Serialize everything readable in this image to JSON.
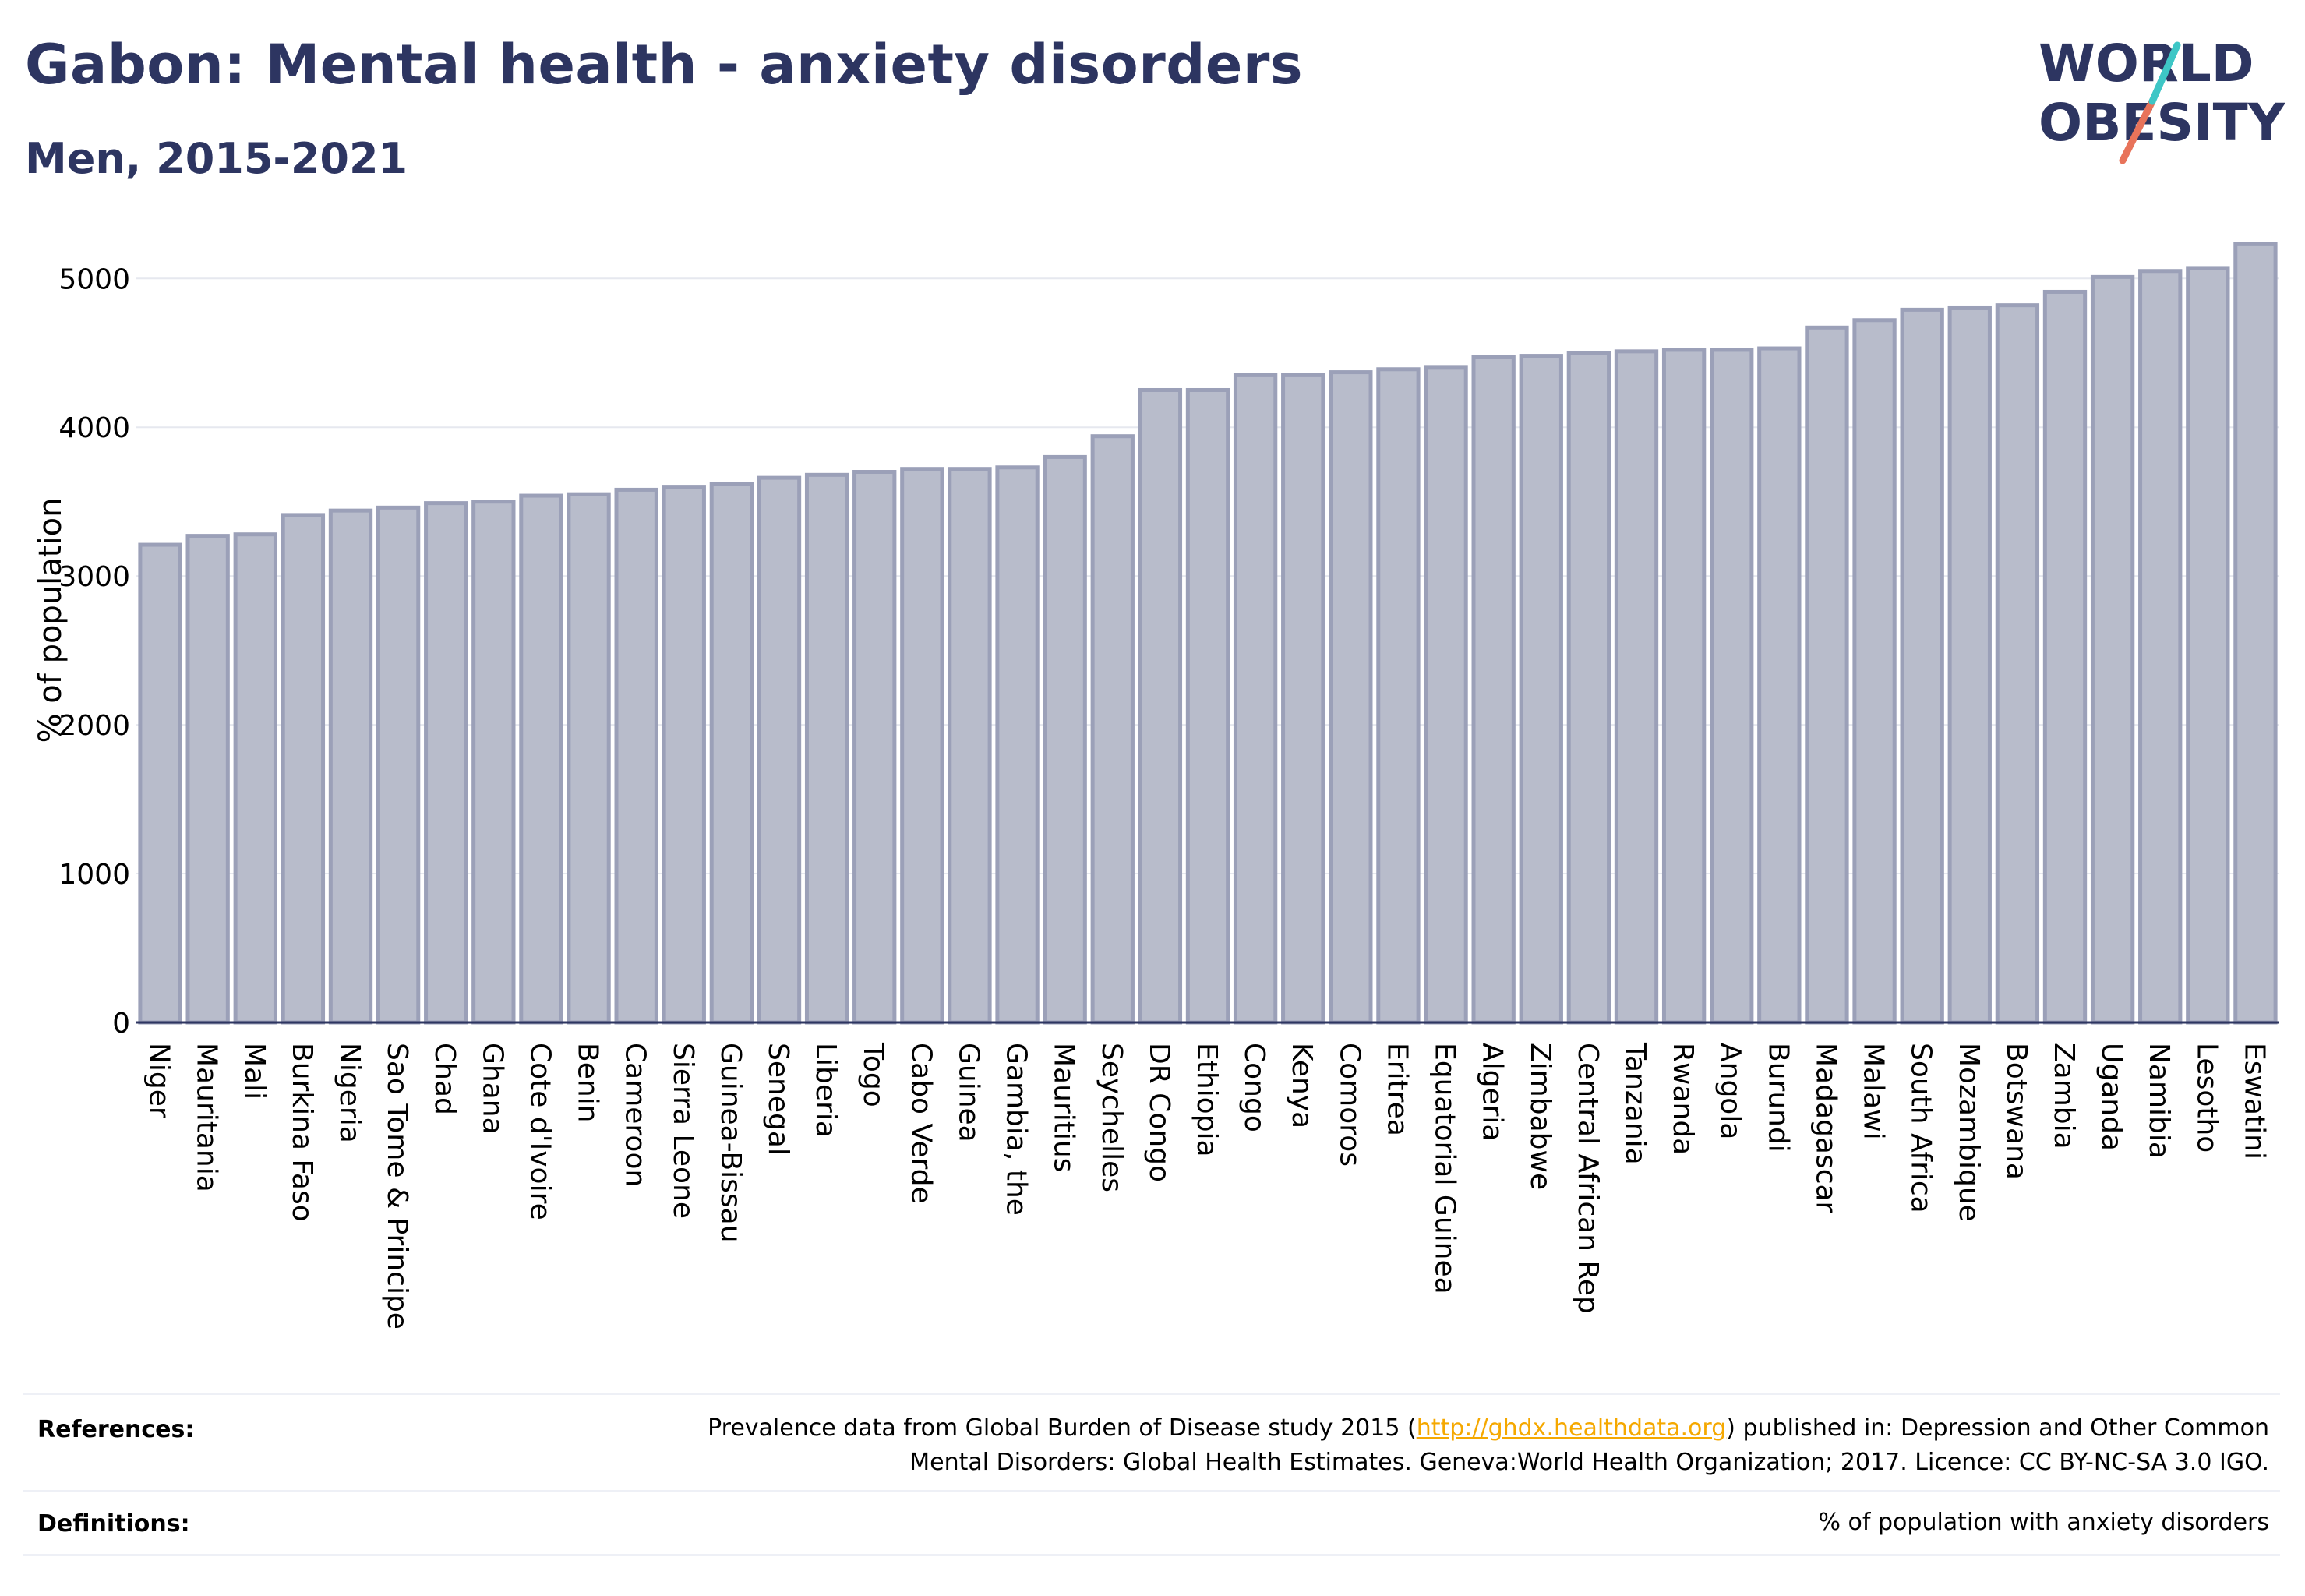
{
  "header": {
    "title": "Gabon: Mental health - anxiety disorders",
    "subtitle": "Men, 2015-2021"
  },
  "logo": {
    "line1": "WORLD",
    "line2": "OBESITY",
    "slash_colors": [
      "#3ec6c6",
      "#e8735a"
    ],
    "text_color": "#2d3561"
  },
  "chart_data": {
    "type": "bar",
    "ylabel": "% of population",
    "ylim": [
      0,
      5300
    ],
    "yticks": [
      0,
      1000,
      2000,
      3000,
      4000,
      5000
    ],
    "grid": true,
    "bar_fill": "#b8bccb",
    "bar_stroke": "#9ba0b8",
    "categories": [
      "Niger",
      "Mauritania",
      "Mali",
      "Burkina Faso",
      "Nigeria",
      "Sao Tome & Principe",
      "Chad",
      "Ghana",
      "Cote d'Ivoire",
      "Benin",
      "Cameroon",
      "Sierra Leone",
      "Guinea-Bissau",
      "Senegal",
      "Liberia",
      "Togo",
      "Cabo Verde",
      "Guinea",
      "Gambia, the",
      "Mauritius",
      "Seychelles",
      "DR Congo",
      "Ethiopia",
      "Congo",
      "Kenya",
      "Comoros",
      "Eritrea",
      "Equatorial Guinea",
      "Algeria",
      "Zimbabwe",
      "Central African Rep",
      "Tanzania",
      "Rwanda",
      "Angola",
      "Burundi",
      "Madagascar",
      "Malawi",
      "South Africa",
      "Mozambique",
      "Botswana",
      "Zambia",
      "Uganda",
      "Namibia",
      "Lesotho",
      "Eswatini"
    ],
    "values": [
      3210,
      3270,
      3280,
      3410,
      3440,
      3460,
      3490,
      3500,
      3540,
      3550,
      3580,
      3600,
      3620,
      3660,
      3680,
      3700,
      3720,
      3720,
      3730,
      3800,
      3940,
      4250,
      4250,
      4350,
      4350,
      4370,
      4390,
      4400,
      4470,
      4480,
      4500,
      4510,
      4520,
      4520,
      4530,
      4670,
      4720,
      4790,
      4800,
      4820,
      4910,
      5010,
      5050,
      5070,
      5230
    ]
  },
  "footer": {
    "references_label": "References:",
    "references_line1_pre": "Prevalence data from Global Burden of Disease study 2015 (",
    "references_link": "http://ghdx.healthdata.org",
    "references_line1_post": ") published in: Depression and Other Common",
    "references_line2": "Mental Disorders: Global Health Estimates. Geneva:World Health Organization; 2017. Licence: CC BY-NC-SA 3.0 IGO.",
    "definitions_label": "Definitions:",
    "definitions_text": "% of population with anxiety disorders"
  }
}
